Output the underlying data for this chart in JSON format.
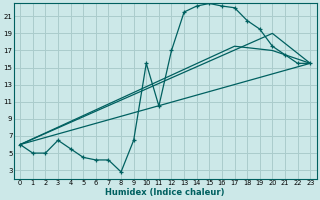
{
  "xlabel": "Humidex (Indice chaleur)",
  "bg_color": "#cce8e8",
  "grid_color": "#aacccc",
  "line_color": "#006060",
  "xlim": [
    -0.5,
    23.5
  ],
  "ylim": [
    2,
    22.5
  ],
  "yticks": [
    3,
    5,
    7,
    9,
    11,
    13,
    15,
    17,
    19,
    21
  ],
  "xticks": [
    0,
    1,
    2,
    3,
    4,
    5,
    6,
    7,
    8,
    9,
    10,
    11,
    12,
    13,
    14,
    15,
    16,
    17,
    18,
    19,
    20,
    21,
    22,
    23
  ],
  "main_x": [
    0,
    1,
    2,
    3,
    4,
    5,
    6,
    7,
    8,
    9,
    10,
    11,
    12,
    13,
    14,
    15,
    16,
    17,
    18,
    19,
    20,
    21,
    22,
    23
  ],
  "main_y": [
    6.0,
    5.0,
    5.0,
    6.5,
    5.5,
    4.5,
    4.2,
    4.2,
    2.8,
    6.5,
    15.5,
    10.5,
    17.0,
    21.5,
    22.2,
    22.5,
    22.2,
    22.0,
    20.5,
    19.5,
    17.5,
    16.5,
    15.5,
    15.5
  ],
  "trend1_x": [
    0,
    23
  ],
  "trend1_y": [
    6.0,
    15.5
  ],
  "trend2_x": [
    0,
    20,
    23
  ],
  "trend2_y": [
    6.0,
    19.0,
    15.5
  ],
  "trend3_x": [
    0,
    17,
    20,
    23
  ],
  "trend3_y": [
    6.0,
    17.5,
    17.0,
    15.5
  ]
}
